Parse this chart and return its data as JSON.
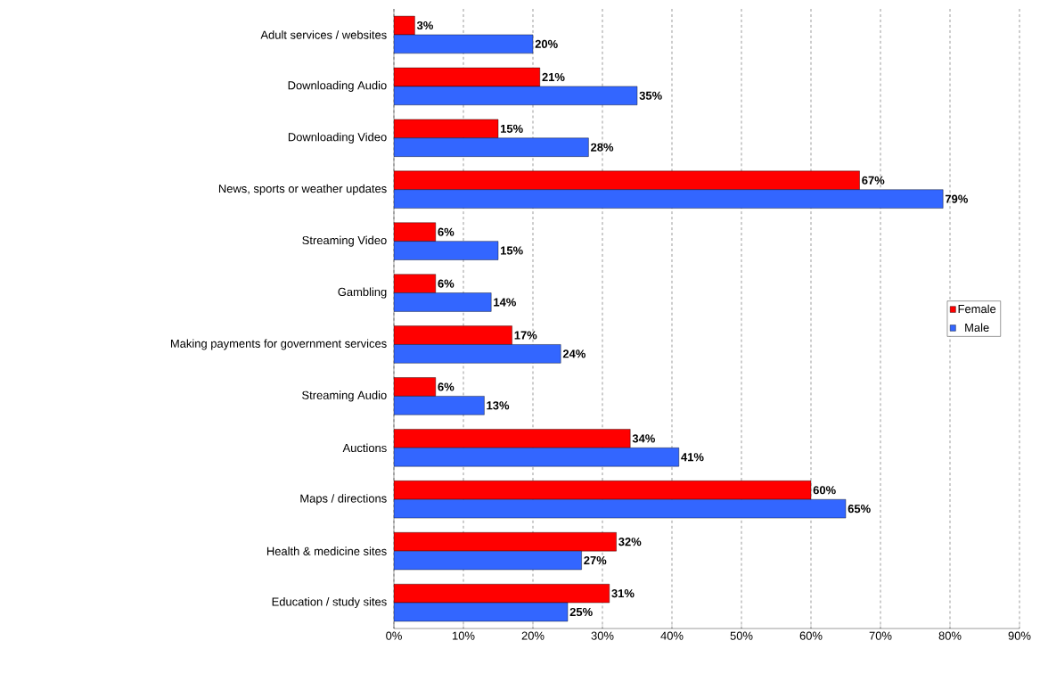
{
  "chart_data": {
    "type": "bar",
    "orientation": "horizontal",
    "categories": [
      "Adult services / websites",
      "Downloading Audio",
      "Downloading Video",
      "News, sports or weather updates",
      "Streaming Video",
      "Gambling",
      "Making payments for government services",
      "Streaming Audio",
      "Auctions",
      "Maps / directions",
      "Health & medicine sites",
      "Education / study sites"
    ],
    "series": [
      {
        "name": "Female",
        "color": "#ff0000",
        "values": [
          3,
          21,
          15,
          67,
          6,
          6,
          17,
          6,
          34,
          60,
          32,
          31
        ],
        "value_labels": [
          "3%",
          "21%",
          "15%",
          "67%",
          "6%",
          "6%",
          "17%",
          "6%",
          "34%",
          "60%",
          "32%",
          "31%"
        ]
      },
      {
        "name": "Male",
        "color": "#3366ff",
        "values": [
          20,
          35,
          28,
          79,
          15,
          14,
          24,
          13,
          41,
          65,
          27,
          25
        ],
        "value_labels": [
          "20%",
          "35%",
          "28%",
          "79%",
          "15%",
          "14%",
          "24%",
          "13%",
          "41%",
          "65%",
          "27%",
          "25%"
        ]
      }
    ],
    "xlim": [
      0,
      90
    ],
    "xticks": [
      {
        "value": 0,
        "label": "0%"
      },
      {
        "value": 10,
        "label": "10%"
      },
      {
        "value": 20,
        "label": "20%"
      },
      {
        "value": 30,
        "label": "30%"
      },
      {
        "value": 40,
        "label": "40%"
      },
      {
        "value": 50,
        "label": "50%"
      },
      {
        "value": 60,
        "label": "60%"
      },
      {
        "value": 70,
        "label": "70%"
      },
      {
        "value": 80,
        "label": "80%"
      },
      {
        "value": 90,
        "label": "90%"
      }
    ],
    "grid": "x",
    "legend": "right"
  }
}
